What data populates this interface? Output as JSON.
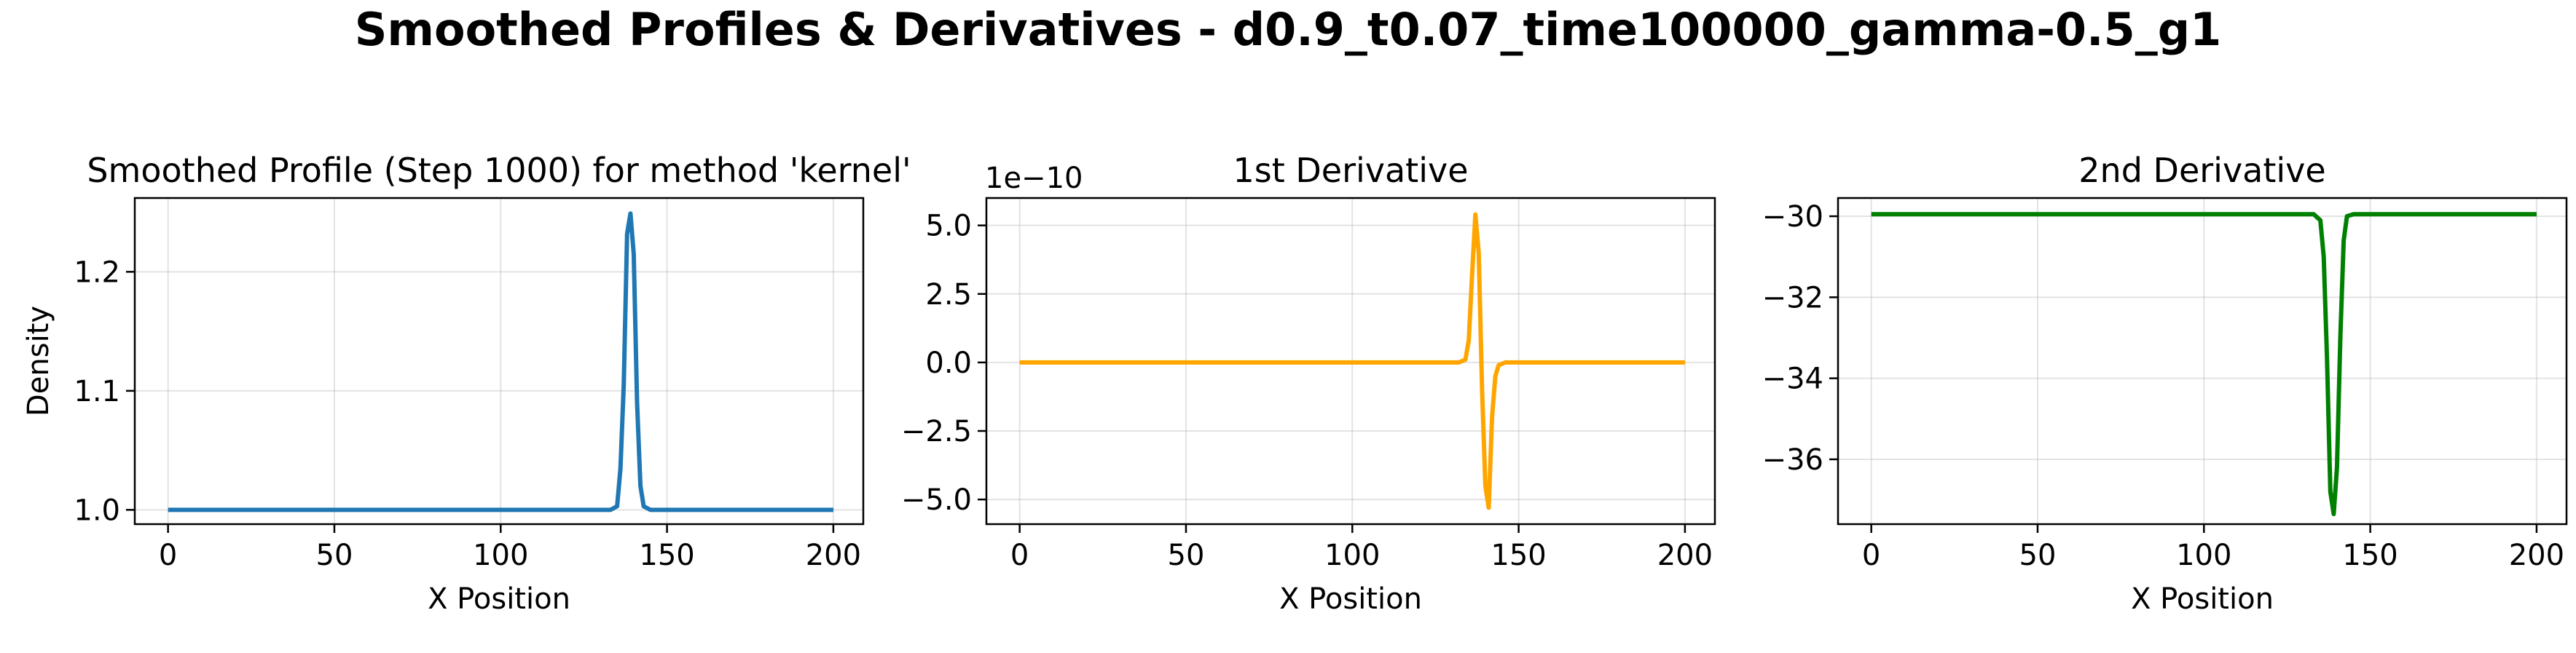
{
  "figure": {
    "suptitle": "Smoothed Profiles & Derivatives - d0.9_t0.07_time100000_gamma-0.5_g1"
  },
  "chart_data": [
    {
      "type": "line",
      "title": "Smoothed Profile (Step 1000) for method 'kernel'",
      "xlabel": "X Position",
      "ylabel": "Density",
      "xlim": [
        -10,
        209
      ],
      "ylim": [
        0.988,
        1.262
      ],
      "xticks": [
        0,
        50,
        100,
        150,
        200
      ],
      "xtick_labels": [
        "0",
        "50",
        "100",
        "150",
        "200"
      ],
      "yticks": [
        1.0,
        1.1,
        1.2
      ],
      "ytick_labels": [
        "1.0",
        "1.1",
        "1.2"
      ],
      "offset_text": "",
      "grid": true,
      "color": "#1f77b4",
      "series": [
        {
          "x": [
            0,
            50,
            100,
            133,
            135,
            136,
            137,
            138,
            139,
            140,
            141,
            142,
            143,
            145,
            150,
            200
          ],
          "y": [
            1.0,
            1.0,
            1.0,
            1.0,
            1.003,
            1.035,
            1.105,
            1.232,
            1.249,
            1.215,
            1.09,
            1.02,
            1.003,
            1.0,
            1.0,
            1.0
          ]
        }
      ]
    },
    {
      "type": "line",
      "title": "1st Derivative",
      "xlabel": "X Position",
      "ylabel": "",
      "xlim": [
        -10,
        209
      ],
      "ylim": [
        -5.9,
        6.0
      ],
      "xticks": [
        0,
        50,
        100,
        150,
        200
      ],
      "xtick_labels": [
        "0",
        "50",
        "100",
        "150",
        "200"
      ],
      "yticks": [
        -5.0,
        -2.5,
        0.0,
        2.5,
        5.0
      ],
      "ytick_labels": [
        "−5.0",
        "−2.5",
        "0.0",
        "2.5",
        "5.0"
      ],
      "offset_text": "1e−10",
      "grid": true,
      "color": "#ffa500",
      "series": [
        {
          "x": [
            0,
            50,
            100,
            132,
            134,
            135,
            136,
            137,
            138,
            139,
            140,
            141,
            142,
            143,
            144,
            146,
            150,
            200
          ],
          "y": [
            0,
            0,
            0,
            0,
            0.1,
            0.8,
            3.2,
            5.4,
            4.0,
            -1.0,
            -4.5,
            -5.3,
            -2.0,
            -0.5,
            -0.1,
            0,
            0,
            0
          ]
        }
      ]
    },
    {
      "type": "line",
      "title": "2nd Derivative",
      "xlabel": "X Position",
      "ylabel": "",
      "xlim": [
        -10,
        209
      ],
      "ylim": [
        -37.6,
        -29.55
      ],
      "xticks": [
        0,
        50,
        100,
        150,
        200
      ],
      "xtick_labels": [
        "0",
        "50",
        "100",
        "150",
        "200"
      ],
      "yticks": [
        -36,
        -34,
        -32,
        -30
      ],
      "ytick_labels": [
        "−36",
        "−34",
        "−32",
        "−30"
      ],
      "offset_text": "",
      "grid": true,
      "color": "#008000",
      "series": [
        {
          "x": [
            0,
            50,
            100,
            133,
            135,
            136,
            137,
            138,
            139,
            140,
            141,
            142,
            143,
            145,
            150,
            200
          ],
          "y": [
            -29.95,
            -29.95,
            -29.95,
            -29.95,
            -30.1,
            -31.0,
            -33.5,
            -36.8,
            -37.35,
            -36.2,
            -33.0,
            -30.6,
            -30.0,
            -29.95,
            -29.95,
            -29.95
          ]
        }
      ]
    }
  ]
}
